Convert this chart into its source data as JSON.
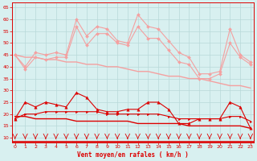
{
  "x": [
    0,
    1,
    2,
    3,
    4,
    5,
    6,
    7,
    8,
    9,
    10,
    11,
    12,
    13,
    14,
    15,
    16,
    17,
    18,
    19,
    20,
    21,
    22,
    23
  ],
  "rafales_high": [
    45,
    40,
    46,
    45,
    46,
    45,
    60,
    53,
    57,
    56,
    51,
    50,
    62,
    57,
    56,
    51,
    46,
    44,
    37,
    37,
    38,
    56,
    45,
    42
  ],
  "rafales_low": [
    45,
    39,
    44,
    43,
    44,
    44,
    57,
    49,
    54,
    54,
    50,
    49,
    57,
    52,
    52,
    47,
    42,
    41,
    35,
    35,
    37,
    50,
    44,
    41
  ],
  "trend_rafales": [
    45,
    44,
    44,
    43,
    43,
    42,
    42,
    41,
    41,
    40,
    40,
    39,
    38,
    38,
    37,
    36,
    36,
    35,
    35,
    34,
    33,
    32,
    32,
    31
  ],
  "vent_high": [
    18,
    25,
    23,
    25,
    24,
    23,
    29,
    27,
    22,
    21,
    21,
    22,
    22,
    25,
    25,
    22,
    16,
    16,
    18,
    18,
    18,
    25,
    23,
    14
  ],
  "vent_low": [
    18,
    20,
    20,
    21,
    21,
    21,
    21,
    21,
    21,
    20,
    20,
    20,
    20,
    20,
    20,
    19,
    18,
    18,
    18,
    18,
    18,
    19,
    19,
    17
  ],
  "trend_vent": [
    19,
    19,
    18,
    18,
    18,
    18,
    17,
    17,
    17,
    17,
    17,
    17,
    16,
    16,
    16,
    16,
    16,
    15,
    15,
    15,
    15,
    15,
    15,
    14
  ],
  "color_light": "#f4a0a0",
  "color_dark": "#dd0000",
  "bg_color": "#d8f0f0",
  "grid_color": "#b8d8d8",
  "xlabel": "Vent moyen/en rafales ( km/h )",
  "ylim": [
    8,
    67
  ],
  "xlim": [
    -0.3,
    23.3
  ],
  "yticks": [
    10,
    15,
    20,
    25,
    30,
    35,
    40,
    45,
    50,
    55,
    60,
    65
  ],
  "xticks": [
    0,
    1,
    2,
    3,
    4,
    5,
    6,
    7,
    8,
    9,
    10,
    11,
    12,
    13,
    14,
    15,
    16,
    17,
    18,
    19,
    20,
    21,
    22,
    23
  ]
}
